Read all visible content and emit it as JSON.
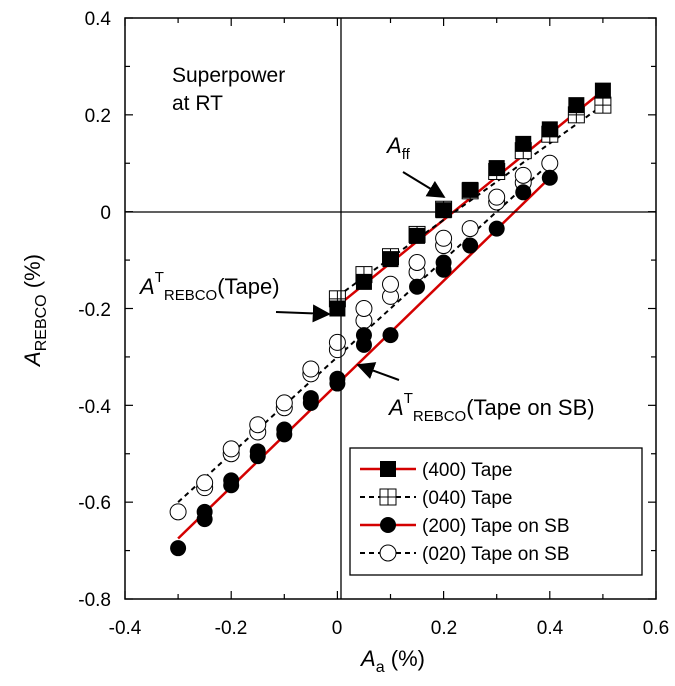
{
  "chart_data": {
    "type": "scatter",
    "title": "",
    "xlabel": "A",
    "xlabel_sub": "a",
    "xlabel_unit": " (%)",
    "ylabel": "A",
    "ylabel_sub": "REBCO",
    "ylabel_unit": " (%)",
    "xlim": [
      -0.4,
      0.6
    ],
    "ylim": [
      -0.8,
      0.4
    ],
    "x_ticks": [
      "-0.4",
      "-0.2",
      "0",
      "0.2",
      "0.4",
      "0.6"
    ],
    "y_ticks": [
      "-0.8",
      "-0.6",
      "-0.4",
      "-0.2",
      "0",
      "0.2",
      "0.4"
    ],
    "legend_position": "bottom-right",
    "series": [
      {
        "name": "(400) Tape",
        "marker": "filled-square",
        "line_style": "solid",
        "line_color": "#d40000",
        "x": [
          0,
          0.05,
          0.1,
          0.15,
          0.2,
          0.25,
          0.3,
          0.35,
          0.4,
          0.45,
          0.5
        ],
        "y": [
          -0.2,
          -0.145,
          -0.098,
          -0.05,
          0.003,
          0.045,
          0.09,
          0.14,
          0.17,
          0.22,
          0.25
        ]
      },
      {
        "name": "(040) Tape",
        "marker": "open-square-cross",
        "line_style": "dashed",
        "line_color": "#000000",
        "x": [
          0,
          0.05,
          0.1,
          0.15,
          0.2,
          0.25,
          0.3,
          0.35,
          0.4,
          0.45,
          0.5
        ],
        "y": [
          -0.18,
          -0.13,
          -0.093,
          -0.047,
          0.005,
          0.043,
          0.083,
          0.126,
          0.16,
          0.2,
          0.22
        ]
      },
      {
        "name": "(200) Tape on SB",
        "marker": "filled-circle",
        "line_style": "solid",
        "line_color": "#d40000",
        "x": [
          -0.3,
          -0.25,
          -0.25,
          -0.2,
          -0.2,
          -0.15,
          -0.15,
          -0.1,
          -0.1,
          -0.05,
          -0.05,
          0,
          0,
          0.05,
          0.05,
          0.1,
          0.15,
          0.2,
          0.2,
          0.25,
          0.3,
          0.35,
          0.4
        ],
        "y": [
          -0.695,
          -0.635,
          -0.62,
          -0.565,
          -0.555,
          -0.505,
          -0.495,
          -0.46,
          -0.45,
          -0.395,
          -0.385,
          -0.355,
          -0.345,
          -0.275,
          -0.255,
          -0.255,
          -0.155,
          -0.12,
          -0.105,
          -0.07,
          -0.035,
          0.04,
          0.07
        ]
      },
      {
        "name": "(020) Tape on SB",
        "marker": "open-circle",
        "line_style": "dashed",
        "line_color": "#000000",
        "x": [
          -0.3,
          -0.25,
          -0.25,
          -0.2,
          -0.2,
          -0.15,
          -0.15,
          -0.1,
          -0.1,
          -0.05,
          -0.05,
          0,
          0,
          0.05,
          0.05,
          0.1,
          0.1,
          0.15,
          0.15,
          0.2,
          0.2,
          0.25,
          0.3,
          0.3,
          0.35,
          0.35,
          0.4
        ],
        "y": [
          -0.62,
          -0.57,
          -0.56,
          -0.5,
          -0.49,
          -0.455,
          -0.44,
          -0.405,
          -0.395,
          -0.335,
          -0.325,
          -0.285,
          -0.27,
          -0.225,
          -0.2,
          -0.175,
          -0.15,
          -0.125,
          -0.105,
          -0.07,
          -0.055,
          -0.035,
          0.02,
          0.03,
          0.06,
          0.075,
          0.1
        ]
      }
    ],
    "fit_lines": [
      {
        "series": "(400) Tape",
        "x": [
          0,
          0.5
        ],
        "y": [
          -0.195,
          0.25
        ]
      },
      {
        "series": "(040) Tape",
        "x": [
          0,
          0.5
        ],
        "y": [
          -0.175,
          0.22
        ]
      },
      {
        "series": "(200) Tape on SB",
        "x": [
          -0.3,
          0.4
        ],
        "y": [
          -0.675,
          0.07
        ]
      },
      {
        "series": "(020) Tape on SB",
        "x": [
          -0.3,
          0.4
        ],
        "y": [
          -0.6,
          0.1
        ]
      }
    ],
    "annotations": [
      {
        "id": "superpower",
        "lines": [
          "Superpower",
          "at RT"
        ]
      },
      {
        "id": "a-ff",
        "main": "A",
        "sub": "ff",
        "arrow_to": [
          0.2,
          0.0
        ]
      },
      {
        "id": "a-tape",
        "main": "A",
        "sup": "T",
        "sub": "REBCO",
        "suffix": "(Tape)",
        "arrow_to": [
          0,
          -0.2
        ]
      },
      {
        "id": "a-tape-sb",
        "main": "A",
        "sup": "T",
        "sub": "REBCO",
        "suffix": "(Tape on SB)",
        "arrow_to": [
          0.02,
          -0.33
        ]
      }
    ]
  }
}
